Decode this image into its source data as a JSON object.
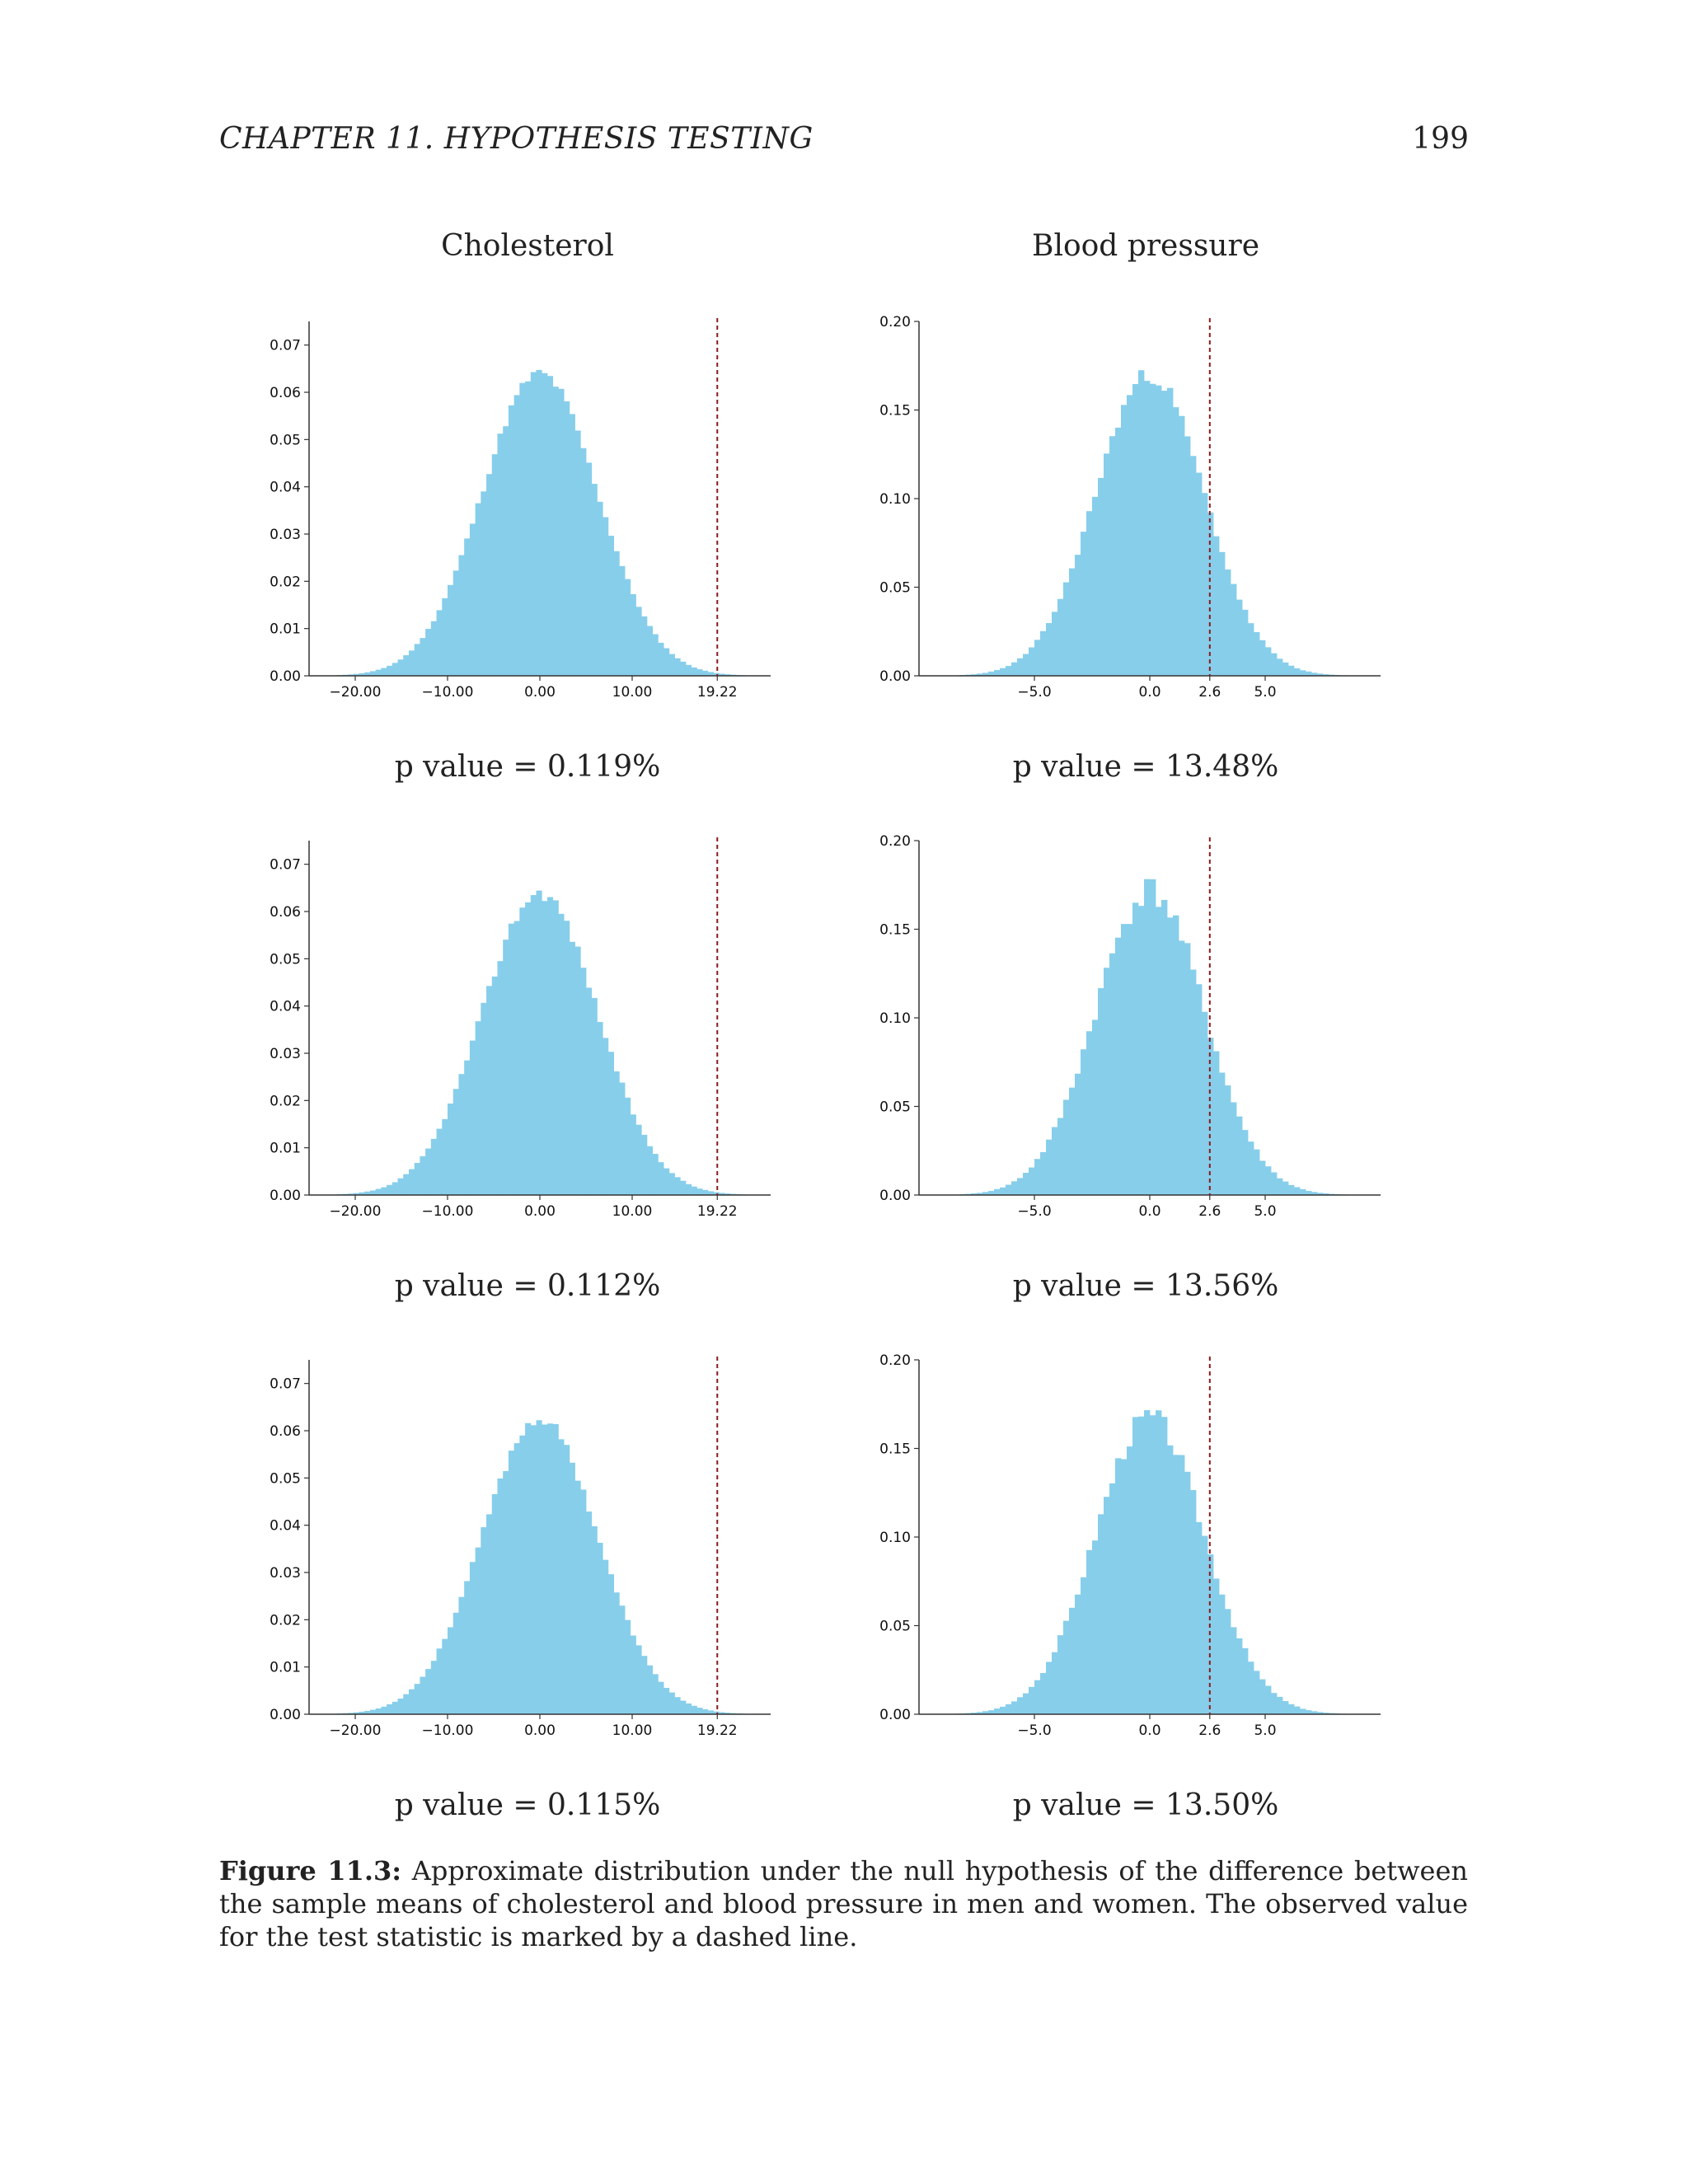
{
  "header": {
    "running_head": "CHAPTER 11.   HYPOTHESIS TESTING",
    "page_number": "199"
  },
  "columns": {
    "left_title": "Cholesterol",
    "right_title": "Blood pressure"
  },
  "pvalues": [
    {
      "left": "p value = 0.119%",
      "right": "p value = 13.48%"
    },
    {
      "left": "p value = 0.112%",
      "right": "p value = 13.56%"
    },
    {
      "left": "p value = 0.115%",
      "right": "p value = 13.50%"
    }
  ],
  "caption": {
    "label": "Figure 11.3:",
    "text": "Approximate distribution under the null hypothesis of the difference between the sample means of cholesterol and blood pressure in men and women. The observed value for the test statistic is marked by a dashed line."
  },
  "colors": {
    "bar": "#87ceeb",
    "marker": "#8b1a1a",
    "axis": "#333333"
  },
  "chart_data": [
    {
      "type": "bar",
      "title": "Cholesterol",
      "row": 1,
      "dist": "normal",
      "mean": 0.0,
      "sd": 6.25,
      "bin_width": 0.6,
      "peak": 0.064,
      "jitter_seed": 11,
      "jitter": 0.02,
      "xlim": [
        -25,
        25
      ],
      "ylim": [
        0,
        0.075
      ],
      "marker": 19.22,
      "xticks": [
        -20,
        -10,
        0,
        10,
        19.22
      ],
      "xtick_labels": [
        "−20.00",
        "−10.00",
        "0.00",
        "10.00",
        "19.22"
      ],
      "yticks": [
        0,
        0.01,
        0.02,
        0.03,
        0.04,
        0.05,
        0.06,
        0.07
      ],
      "ytick_labels": [
        "0.00",
        "0.01",
        "0.02",
        "0.03",
        "0.04",
        "0.05",
        "0.06",
        "0.07"
      ]
    },
    {
      "type": "bar",
      "title": "Blood pressure",
      "row": 1,
      "dist": "normal",
      "mean": 0.0,
      "sd": 2.35,
      "bin_width": 0.25,
      "peak": 0.17,
      "jitter_seed": 23,
      "jitter": 0.03,
      "xlim": [
        -10,
        10
      ],
      "ylim": [
        0,
        0.2
      ],
      "marker": 2.6,
      "xticks": [
        -5,
        0,
        2.6,
        5
      ],
      "xtick_labels": [
        "−5.0",
        "0.0",
        "2.6",
        "5.0"
      ],
      "yticks": [
        0,
        0.05,
        0.1,
        0.15,
        0.2
      ],
      "ytick_labels": [
        "0.00",
        "0.05",
        "0.10",
        "0.15",
        "0.20"
      ]
    },
    {
      "type": "bar",
      "title": "Cholesterol",
      "row": 2,
      "dist": "normal",
      "mean": 0.0,
      "sd": 6.25,
      "bin_width": 0.6,
      "peak": 0.064,
      "jitter_seed": 37,
      "jitter": 0.025,
      "xlim": [
        -25,
        25
      ],
      "ylim": [
        0,
        0.075
      ],
      "marker": 19.22,
      "xticks": [
        -20,
        -10,
        0,
        10,
        19.22
      ],
      "xtick_labels": [
        "−20.00",
        "−10.00",
        "0.00",
        "10.00",
        "19.22"
      ],
      "yticks": [
        0,
        0.01,
        0.02,
        0.03,
        0.04,
        0.05,
        0.06,
        0.07
      ],
      "ytick_labels": [
        "0.00",
        "0.01",
        "0.02",
        "0.03",
        "0.04",
        "0.05",
        "0.06",
        "0.07"
      ]
    },
    {
      "type": "bar",
      "title": "Blood pressure",
      "row": 2,
      "dist": "normal",
      "mean": 0.0,
      "sd": 2.35,
      "bin_width": 0.25,
      "peak": 0.172,
      "jitter_seed": 41,
      "jitter": 0.05,
      "xlim": [
        -10,
        10
      ],
      "ylim": [
        0,
        0.2
      ],
      "marker": 2.6,
      "xticks": [
        -5,
        0,
        2.6,
        5
      ],
      "xtick_labels": [
        "−5.0",
        "0.0",
        "2.6",
        "5.0"
      ],
      "yticks": [
        0,
        0.05,
        0.1,
        0.15,
        0.2
      ],
      "ytick_labels": [
        "0.00",
        "0.05",
        "0.10",
        "0.15",
        "0.20"
      ]
    },
    {
      "type": "bar",
      "title": "Cholesterol",
      "row": 3,
      "dist": "normal",
      "mean": 0.0,
      "sd": 6.25,
      "bin_width": 0.6,
      "peak": 0.0625,
      "jitter_seed": 53,
      "jitter": 0.02,
      "xlim": [
        -25,
        25
      ],
      "ylim": [
        0,
        0.075
      ],
      "marker": 19.22,
      "xticks": [
        -20,
        -10,
        0,
        10,
        19.22
      ],
      "xtick_labels": [
        "−20.00",
        "−10.00",
        "0.00",
        "10.00",
        "19.22"
      ],
      "yticks": [
        0,
        0.01,
        0.02,
        0.03,
        0.04,
        0.05,
        0.06,
        0.07
      ],
      "ytick_labels": [
        "0.00",
        "0.01",
        "0.02",
        "0.03",
        "0.04",
        "0.05",
        "0.06",
        "0.07"
      ]
    },
    {
      "type": "bar",
      "title": "Blood pressure",
      "row": 3,
      "dist": "normal",
      "mean": 0.0,
      "sd": 2.35,
      "bin_width": 0.25,
      "peak": 0.168,
      "jitter_seed": 67,
      "jitter": 0.04,
      "xlim": [
        -10,
        10
      ],
      "ylim": [
        0,
        0.2
      ],
      "marker": 2.6,
      "xticks": [
        -5,
        0,
        2.6,
        5
      ],
      "xtick_labels": [
        "−5.0",
        "0.0",
        "2.6",
        "5.0"
      ],
      "yticks": [
        0,
        0.05,
        0.1,
        0.15,
        0.2
      ],
      "ytick_labels": [
        "0.00",
        "0.05",
        "0.10",
        "0.15",
        "0.20"
      ]
    }
  ]
}
